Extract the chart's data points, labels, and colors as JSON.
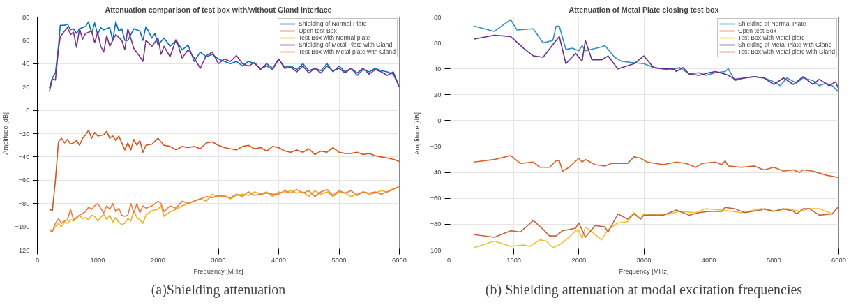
{
  "chart_data": [
    {
      "type": "line",
      "title": "Attenuation comparison of test box with/without Gland interface",
      "xlabel": "Frequency [MHz]",
      "ylabel": "Amplitude [dB]",
      "annotations": [
        "(a)Shielding attenuation"
      ],
      "xlim": [
        0,
        6000
      ],
      "ylim": [
        -120,
        80
      ],
      "xticks": [
        0,
        1000,
        2000,
        3000,
        4000,
        5000,
        6000
      ],
      "yticks": [
        -120,
        -100,
        -80,
        -60,
        -40,
        -20,
        0,
        20,
        40,
        60,
        80
      ],
      "grid": true,
      "legend": "top right",
      "series": [
        {
          "name": "Shielding of Normal Plate",
          "color": "#0072bd",
          "x": [
            200,
            250,
            300,
            350,
            380,
            450,
            500,
            550,
            600,
            650,
            700,
            800,
            850,
            900,
            950,
            1000,
            1050,
            1100,
            1200,
            1250,
            1300,
            1350,
            1400,
            1450,
            1500,
            1600,
            1700,
            1750,
            1800,
            1900,
            1950,
            2000,
            2100,
            2200,
            2300,
            2400,
            2500,
            2600,
            2700,
            2800,
            2900,
            3000,
            3100,
            3200,
            3300,
            3400,
            3500,
            3600,
            3700,
            3800,
            3900,
            4000,
            4100,
            4200,
            4300,
            4400,
            4500,
            4600,
            4700,
            4800,
            4900,
            5000,
            5100,
            5200,
            5300,
            5400,
            5500,
            5600,
            5700,
            5800,
            5900,
            6000
          ],
          "values": [
            19,
            28,
            32,
            55,
            73,
            73,
            74,
            69,
            70,
            66,
            70,
            72,
            76,
            66,
            75,
            65,
            71,
            69,
            71,
            60,
            76,
            68,
            70,
            60,
            60,
            70,
            68,
            60,
            72,
            62,
            66,
            56,
            62,
            55,
            60,
            52,
            56,
            42,
            50,
            46,
            48,
            44,
            42,
            40,
            42,
            38,
            42,
            40,
            36,
            38,
            35,
            44,
            37,
            38,
            35,
            40,
            34,
            36,
            34,
            40,
            33,
            38,
            33,
            36,
            30,
            35,
            33,
            36,
            34,
            33,
            31,
            20
          ]
        },
        {
          "name": "Open test Box",
          "color": "#d95319",
          "x": [
            200,
            250,
            300,
            350,
            400,
            450,
            500,
            550,
            600,
            650,
            700,
            750,
            800,
            850,
            900,
            950,
            1000,
            1100,
            1150,
            1200,
            1250,
            1300,
            1350,
            1400,
            1450,
            1500,
            1550,
            1600,
            1650,
            1700,
            1750,
            1800,
            1900,
            2000,
            2100,
            2200,
            2300,
            2400,
            2500,
            2600,
            2700,
            2800,
            2900,
            3000,
            3100,
            3200,
            3300,
            3400,
            3500,
            3600,
            3700,
            3800,
            3900,
            4000,
            4100,
            4200,
            4300,
            4400,
            4500,
            4600,
            4700,
            4800,
            4900,
            5000,
            5100,
            5200,
            5300,
            5400,
            5500,
            5600,
            5700,
            5800,
            5900,
            6000
          ],
          "values": [
            -85,
            -86,
            -60,
            -27,
            -24,
            -28,
            -25,
            -29,
            -28,
            -26,
            -30,
            -24,
            -21,
            -17,
            -24,
            -19,
            -22,
            -21,
            -18,
            -24,
            -22,
            -26,
            -22,
            -28,
            -34,
            -28,
            -34,
            -25,
            -30,
            -26,
            -36,
            -30,
            -29,
            -24,
            -30,
            -31,
            -34,
            -31,
            -32,
            -31,
            -33,
            -28,
            -27,
            -30,
            -32,
            -33,
            -34,
            -31,
            -30,
            -33,
            -32,
            -35,
            -31,
            -32,
            -35,
            -36,
            -34,
            -36,
            -33,
            -38,
            -35,
            -36,
            -32,
            -36,
            -37,
            -37,
            -36,
            -38,
            -37,
            -39,
            -40,
            -41,
            -42,
            -44
          ]
        },
        {
          "name": "Test Box with Normal plate",
          "color": "#edb120",
          "x": [
            200,
            250,
            300,
            350,
            400,
            450,
            500,
            550,
            600,
            700,
            750,
            800,
            850,
            900,
            950,
            1000,
            1050,
            1100,
            1150,
            1200,
            1250,
            1300,
            1350,
            1400,
            1450,
            1500,
            1550,
            1600,
            1650,
            1700,
            1750,
            1800,
            1900,
            2000,
            2050,
            2100,
            2200,
            2300,
            2400,
            2500,
            2600,
            2700,
            2800,
            2900,
            3000,
            3100,
            3200,
            3300,
            3400,
            3500,
            3600,
            3700,
            3800,
            3900,
            4000,
            4100,
            4200,
            4300,
            4400,
            4500,
            4600,
            4700,
            4800,
            4900,
            5000,
            5100,
            5200,
            5300,
            5400,
            5500,
            5600,
            5700,
            5800,
            5900,
            6000
          ],
          "values": [
            -105,
            -103,
            -100,
            -97,
            -100,
            -96,
            -97,
            -94,
            -95,
            -90,
            -93,
            -92,
            -94,
            -90,
            -91,
            -95,
            -92,
            -89,
            -94,
            -90,
            -96,
            -92,
            -96,
            -98,
            -97,
            -93,
            -95,
            -86,
            -92,
            -94,
            -97,
            -90,
            -86,
            -85,
            -82,
            -91,
            -87,
            -85,
            -82,
            -80,
            -78,
            -76,
            -78,
            -72,
            -74,
            -73,
            -76,
            -73,
            -72,
            -73,
            -70,
            -72,
            -70,
            -74,
            -70,
            -71,
            -69,
            -71,
            -70,
            -74,
            -69,
            -72,
            -70,
            -74,
            -70,
            -71,
            -74,
            -72,
            -70,
            -72,
            -71,
            -69,
            -70,
            -67,
            -66
          ]
        },
        {
          "name": "Shielding of Metal Plate with Gland",
          "color": "#7e2f8e",
          "x": [
            200,
            250,
            300,
            350,
            380,
            450,
            500,
            550,
            600,
            650,
            700,
            750,
            800,
            900,
            950,
            1000,
            1050,
            1100,
            1150,
            1200,
            1300,
            1400,
            1450,
            1500,
            1600,
            1700,
            1750,
            1800,
            1900,
            2000,
            2050,
            2100,
            2200,
            2300,
            2400,
            2500,
            2600,
            2700,
            2800,
            2900,
            3000,
            3100,
            3200,
            3300,
            3400,
            3500,
            3600,
            3700,
            3800,
            3900,
            4000,
            4100,
            4200,
            4300,
            4400,
            4500,
            4600,
            4700,
            4800,
            4900,
            5000,
            5100,
            5200,
            5300,
            5400,
            5500,
            5600,
            5700,
            5800,
            5900,
            6000
          ],
          "values": [
            16,
            27,
            26,
            52,
            63,
            68,
            71,
            65,
            67,
            54,
            70,
            61,
            66,
            68,
            58,
            67,
            55,
            50,
            64,
            55,
            65,
            60,
            52,
            70,
            53,
            46,
            42,
            60,
            55,
            62,
            48,
            55,
            46,
            61,
            45,
            52,
            45,
            36,
            47,
            50,
            40,
            44,
            42,
            47,
            40,
            38,
            41,
            35,
            40,
            36,
            44,
            36,
            37,
            33,
            38,
            32,
            36,
            32,
            38,
            34,
            36,
            32,
            36,
            32,
            36,
            31,
            35,
            33,
            30,
            33,
            20
          ]
        },
        {
          "name": "Test Box with Metal plate with Gland",
          "color": "#f47a3c",
          "x": [
            200,
            250,
            300,
            350,
            400,
            450,
            500,
            550,
            600,
            650,
            700,
            800,
            850,
            900,
            950,
            1000,
            1050,
            1100,
            1150,
            1200,
            1250,
            1300,
            1350,
            1400,
            1450,
            1500,
            1550,
            1600,
            1650,
            1700,
            1750,
            1800,
            1900,
            2000,
            2050,
            2100,
            2200,
            2300,
            2400,
            2500,
            2600,
            2700,
            2800,
            2900,
            3000,
            3100,
            3200,
            3300,
            3400,
            3500,
            3600,
            3700,
            3800,
            3900,
            4000,
            4100,
            4200,
            4300,
            4400,
            4500,
            4600,
            4700,
            4800,
            4900,
            5000,
            5100,
            5200,
            5300,
            5400,
            5500,
            5600,
            5700,
            5800,
            5900,
            6000
          ],
          "values": [
            -102,
            -104,
            -97,
            -93,
            -97,
            -95,
            -94,
            -85,
            -94,
            -92,
            -90,
            -87,
            -83,
            -85,
            -82,
            -80,
            -84,
            -88,
            -82,
            -85,
            -80,
            -87,
            -84,
            -90,
            -91,
            -90,
            -80,
            -88,
            -80,
            -88,
            -82,
            -84,
            -82,
            -78,
            -80,
            -87,
            -82,
            -84,
            -78,
            -80,
            -78,
            -76,
            -74,
            -75,
            -73,
            -74,
            -75,
            -72,
            -74,
            -70,
            -73,
            -72,
            -71,
            -72,
            -72,
            -69,
            -71,
            -68,
            -71,
            -69,
            -74,
            -70,
            -68,
            -73,
            -69,
            -71,
            -69,
            -73,
            -70,
            -71,
            -70,
            -72,
            -70,
            -68,
            -65
          ]
        }
      ]
    },
    {
      "type": "line",
      "title": "Attenuation of Metal Plate closing test box",
      "xlabel": "Frequency [MHz]",
      "ylabel": "Amplitude [dB]",
      "annotations": [
        "(b) Shielding attenuation at modal excitation frequencies"
      ],
      "xlim": [
        0,
        6000
      ],
      "ylim": [
        -100,
        80
      ],
      "xticks": [
        0,
        1000,
        2000,
        3000,
        4000,
        5000,
        6000
      ],
      "yticks": [
        -100,
        -80,
        -60,
        -40,
        -20,
        0,
        20,
        40,
        60,
        80
      ],
      "grid": true,
      "legend": "top right",
      "series": [
        {
          "name": "Shielding of Normal Plate",
          "color": "#2e8fc0",
          "x": [
            390,
            700,
            950,
            1050,
            1300,
            1450,
            1600,
            1650,
            1700,
            1800,
            1900,
            2000,
            2050,
            2100,
            2350,
            2400,
            2550,
            2650,
            2800,
            3000,
            3150,
            3300,
            3400,
            3550,
            3700,
            3850,
            3950,
            4100,
            4250,
            4300,
            4400,
            4550,
            4700,
            4850,
            5000,
            5100,
            5200,
            5350,
            5450,
            5600,
            5700,
            5800,
            5900,
            6000
          ],
          "values": [
            73,
            69,
            78,
            70,
            71,
            60,
            62,
            73,
            73,
            55,
            56,
            54,
            58,
            54,
            57,
            58,
            49,
            46,
            45,
            44,
            41,
            40,
            39,
            41,
            36,
            37,
            35,
            37,
            38,
            40,
            31,
            33,
            34,
            33,
            30,
            27,
            33,
            29,
            33,
            31,
            27,
            29,
            27,
            22
          ]
        },
        {
          "name": "Open test Box",
          "color": "#d9622b",
          "x": [
            390,
            700,
            950,
            1100,
            1300,
            1400,
            1550,
            1650,
            1700,
            1750,
            1850,
            2000,
            2050,
            2100,
            2250,
            2400,
            2500,
            2750,
            2850,
            2950,
            3050,
            3300,
            3500,
            3650,
            3800,
            3900,
            4100,
            4200,
            4250,
            4300,
            4500,
            4700,
            4850,
            5000,
            5150,
            5300,
            5400,
            5450,
            5600,
            5800,
            6000
          ],
          "values": [
            -32,
            -30,
            -27,
            -33,
            -32,
            -36,
            -36,
            -31,
            -31,
            -39,
            -36,
            -29,
            -32,
            -30,
            -34,
            -35,
            -33,
            -33,
            -28,
            -29,
            -32,
            -34,
            -32,
            -33,
            -36,
            -33,
            -32,
            -34,
            -31,
            -35,
            -36,
            -35,
            -38,
            -36,
            -39,
            -38,
            -40,
            -38,
            -39,
            -42,
            -44
          ]
        },
        {
          "name": "Test Box with Metal plate",
          "color": "#f0c030",
          "x": [
            390,
            700,
            950,
            1150,
            1250,
            1400,
            1500,
            1600,
            1700,
            1850,
            1950,
            2000,
            2050,
            2100,
            2300,
            2350,
            2450,
            2600,
            2750,
            2850,
            2950,
            3000,
            3200,
            3400,
            3550,
            3800,
            3950,
            4200,
            4500,
            4800,
            5000,
            5200,
            5400,
            5550,
            5700,
            5900,
            6000
          ],
          "values": [
            -98,
            -93,
            -97,
            -96,
            -97,
            -92,
            -93,
            -98,
            -96,
            -90,
            -85,
            -85,
            -91,
            -82,
            -90,
            -92,
            -84,
            -79,
            -78,
            -71,
            -76,
            -72,
            -73,
            -72,
            -70,
            -71,
            -68,
            -69,
            -71,
            -68,
            -70,
            -68,
            -70,
            -68,
            -68,
            -72,
            -66
          ]
        },
        {
          "name": "Shielding of Metal Plate with Gland",
          "color": "#6a2f8e",
          "x": [
            390,
            700,
            950,
            1150,
            1300,
            1450,
            1650,
            1700,
            1800,
            1950,
            2050,
            2100,
            2200,
            2350,
            2450,
            2600,
            2850,
            3000,
            3150,
            3300,
            3450,
            3500,
            3600,
            3700,
            3850,
            4000,
            4100,
            4250,
            4300,
            4400,
            4550,
            4700,
            4850,
            5000,
            5150,
            5300,
            5400,
            5450,
            5600,
            5700,
            5850,
            5950,
            6000
          ],
          "values": [
            63,
            66,
            65,
            56,
            50,
            49,
            62,
            65,
            44,
            52,
            46,
            62,
            47,
            47,
            50,
            40,
            44,
            50,
            41,
            40,
            40,
            38,
            41,
            36,
            35,
            37,
            38,
            36,
            35,
            32,
            33,
            34,
            33,
            28,
            33,
            28,
            32,
            34,
            28,
            32,
            27,
            30,
            24
          ]
        },
        {
          "name": "Test Box with Metal plate with Gland",
          "color": "#c8643c",
          "x": [
            390,
            700,
            950,
            1100,
            1300,
            1450,
            1550,
            1650,
            1750,
            1950,
            2000,
            2100,
            2250,
            2400,
            2450,
            2600,
            2750,
            2850,
            2950,
            3000,
            3300,
            3500,
            3700,
            3850,
            4000,
            4200,
            4250,
            4400,
            4550,
            4800,
            4850,
            5000,
            5150,
            5300,
            5350,
            5450,
            5550,
            5700,
            5900,
            6000
          ],
          "values": [
            -88,
            -90,
            -85,
            -86,
            -77,
            -84,
            -89,
            -89,
            -85,
            -83,
            -79,
            -90,
            -81,
            -82,
            -86,
            -72,
            -76,
            -72,
            -76,
            -73,
            -73,
            -69,
            -73,
            -71,
            -70,
            -70,
            -67,
            -68,
            -71,
            -69,
            -68,
            -70,
            -68,
            -70,
            -72,
            -68,
            -68,
            -73,
            -72,
            -66
          ]
        }
      ]
    }
  ]
}
